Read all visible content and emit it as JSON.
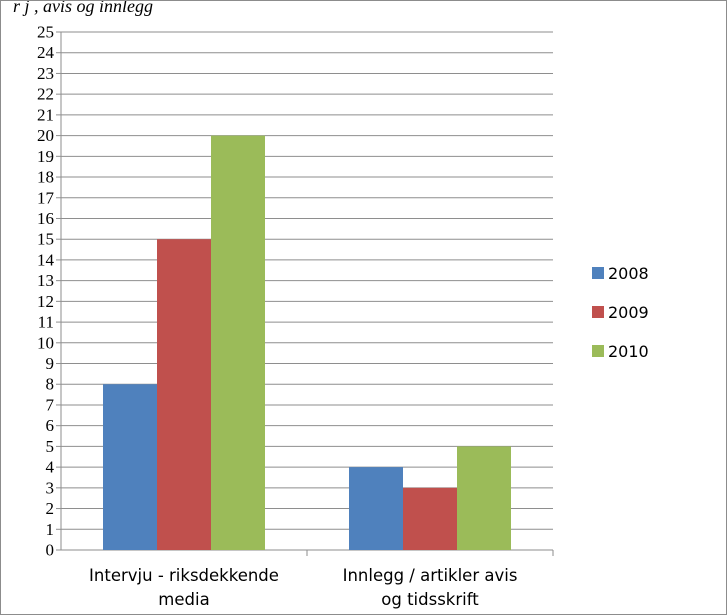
{
  "header_fragment": "r j , avis og innlegg",
  "chart_data": {
    "type": "bar",
    "title": "",
    "xlabel": "",
    "ylabel": "",
    "ylim": [
      0,
      25
    ],
    "ytick_step": 1,
    "grid": true,
    "legend_position": "right",
    "categories": [
      [
        "Intervju - riksdekkende",
        "media"
      ],
      [
        "Innlegg / artikler avis",
        "og tidsskrift"
      ]
    ],
    "series": [
      {
        "name": "2008",
        "color": "#4f81bd",
        "values": [
          8,
          4
        ]
      },
      {
        "name": "2009",
        "color": "#c0504d",
        "values": [
          15,
          3
        ]
      },
      {
        "name": "2010",
        "color": "#9bbb59",
        "values": [
          20,
          5
        ]
      }
    ]
  }
}
